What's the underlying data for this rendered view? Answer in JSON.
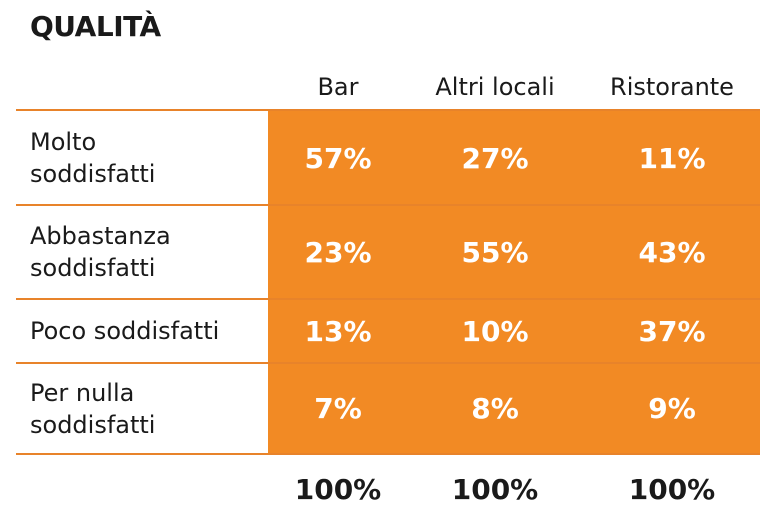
{
  "chart_data": {
    "type": "table",
    "title": "QUALITÀ",
    "columns": [
      "Bar",
      "Altri locali",
      "Ristorante"
    ],
    "rows": [
      {
        "label_lines": [
          "Molto",
          "soddisfatti"
        ],
        "values": [
          "57%",
          "27%",
          "11%"
        ]
      },
      {
        "label_lines": [
          "Abbastanza",
          "soddisfatti"
        ],
        "values": [
          "23%",
          "55%",
          "43%"
        ]
      },
      {
        "label_lines": [
          "Poco soddisfatti"
        ],
        "values": [
          "13%",
          "10%",
          "37%"
        ]
      },
      {
        "label_lines": [
          "Per nulla",
          "soddisfatti"
        ],
        "values": [
          "7%",
          "8%",
          "9%"
        ]
      }
    ],
    "totals": [
      "100%",
      "100%",
      "100%"
    ]
  },
  "colors": {
    "accent": "#f28a24",
    "line": "#e8832a",
    "text": "#1a1a1a",
    "cell_text": "#ffffff"
  }
}
